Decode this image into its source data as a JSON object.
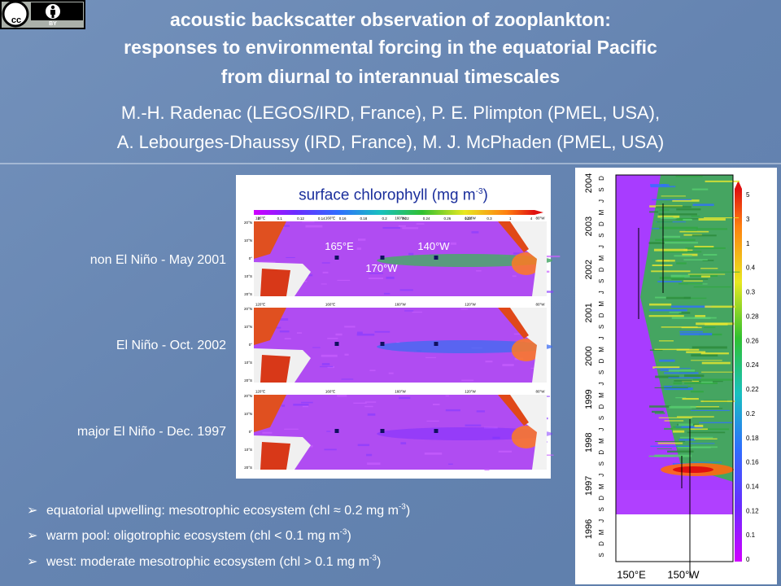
{
  "badge": {
    "icon": "cc",
    "text": "BY"
  },
  "header": {
    "title_lines": [
      "acoustic backscatter observation of zooplankton:",
      "responses to environmental forcing in the equatorial Pacific",
      "from diurnal to interannual timescales"
    ],
    "author_lines": [
      "M.-H. Radenac (LEGOS/IRD, France), P. E. Plimpton (PMEL, USA),",
      "A. Lebourges-Dhaussy (IRD, France), M. J. McPhaden (PMEL, USA)"
    ]
  },
  "maps": {
    "title": "surface chlorophyll (mg m",
    "title_sup": "-3",
    "title_end": ")",
    "colorbar_labels": [
      "0",
      "0.1",
      "0.12",
      "0.14",
      "0.16",
      "0.18",
      "0.2",
      "0.22",
      "0.24",
      "0.26",
      "0.28",
      "0.3",
      "1",
      "4"
    ],
    "lon_ticks": [
      "120°E",
      "160°E",
      "160°W",
      "120°W",
      "80°W"
    ],
    "lat_ticks": [
      "20°N",
      "10°N",
      "0°",
      "10°S",
      "20°S"
    ],
    "site_labels": [
      "165°E",
      "170°W",
      "140°W"
    ],
    "panels": [
      {
        "label": "non El Niño  -  May 2001"
      },
      {
        "label": "El Niño  -  Oct. 2002"
      },
      {
        "label": "major El Niño  -  Dec. 1997"
      }
    ]
  },
  "hovmoller": {
    "years": [
      "1996",
      "1997",
      "1998",
      "1999",
      "2000",
      "2001",
      "2002",
      "2003",
      "2004"
    ],
    "months": [
      "S",
      "D",
      "M",
      "J",
      "S",
      "D",
      "M",
      "J",
      "S",
      "D",
      "M",
      "J",
      "S",
      "D",
      "M",
      "J",
      "S",
      "D",
      "M",
      "J",
      "S",
      "D",
      "M",
      "J",
      "S",
      "D",
      "M",
      "J",
      "S",
      "D",
      "M",
      "J",
      "S",
      "D"
    ],
    "lon_ticks": [
      "150°E",
      "150°W"
    ],
    "colorbar_labels": [
      "0",
      "0.1",
      "0.12",
      "0.14",
      "0.16",
      "0.18",
      "0.2",
      "0.22",
      "0.24",
      "0.26",
      "0.28",
      "0.3",
      "0.4",
      "1",
      "3",
      "5"
    ]
  },
  "bullets": [
    {
      "text": "equatorial upwelling: mesotrophic ecosystem (chl ≈ 0.2 mg m",
      "sup": "-3",
      "end": ")"
    },
    {
      "text": "warm pool: oligotrophic ecosystem (chl < 0.1 mg m",
      "sup": "-3",
      "end": ")"
    },
    {
      "text": "west: moderate mesotrophic ecosystem (chl > 0.1 mg m",
      "sup": "-3",
      "end": ")"
    }
  ]
}
